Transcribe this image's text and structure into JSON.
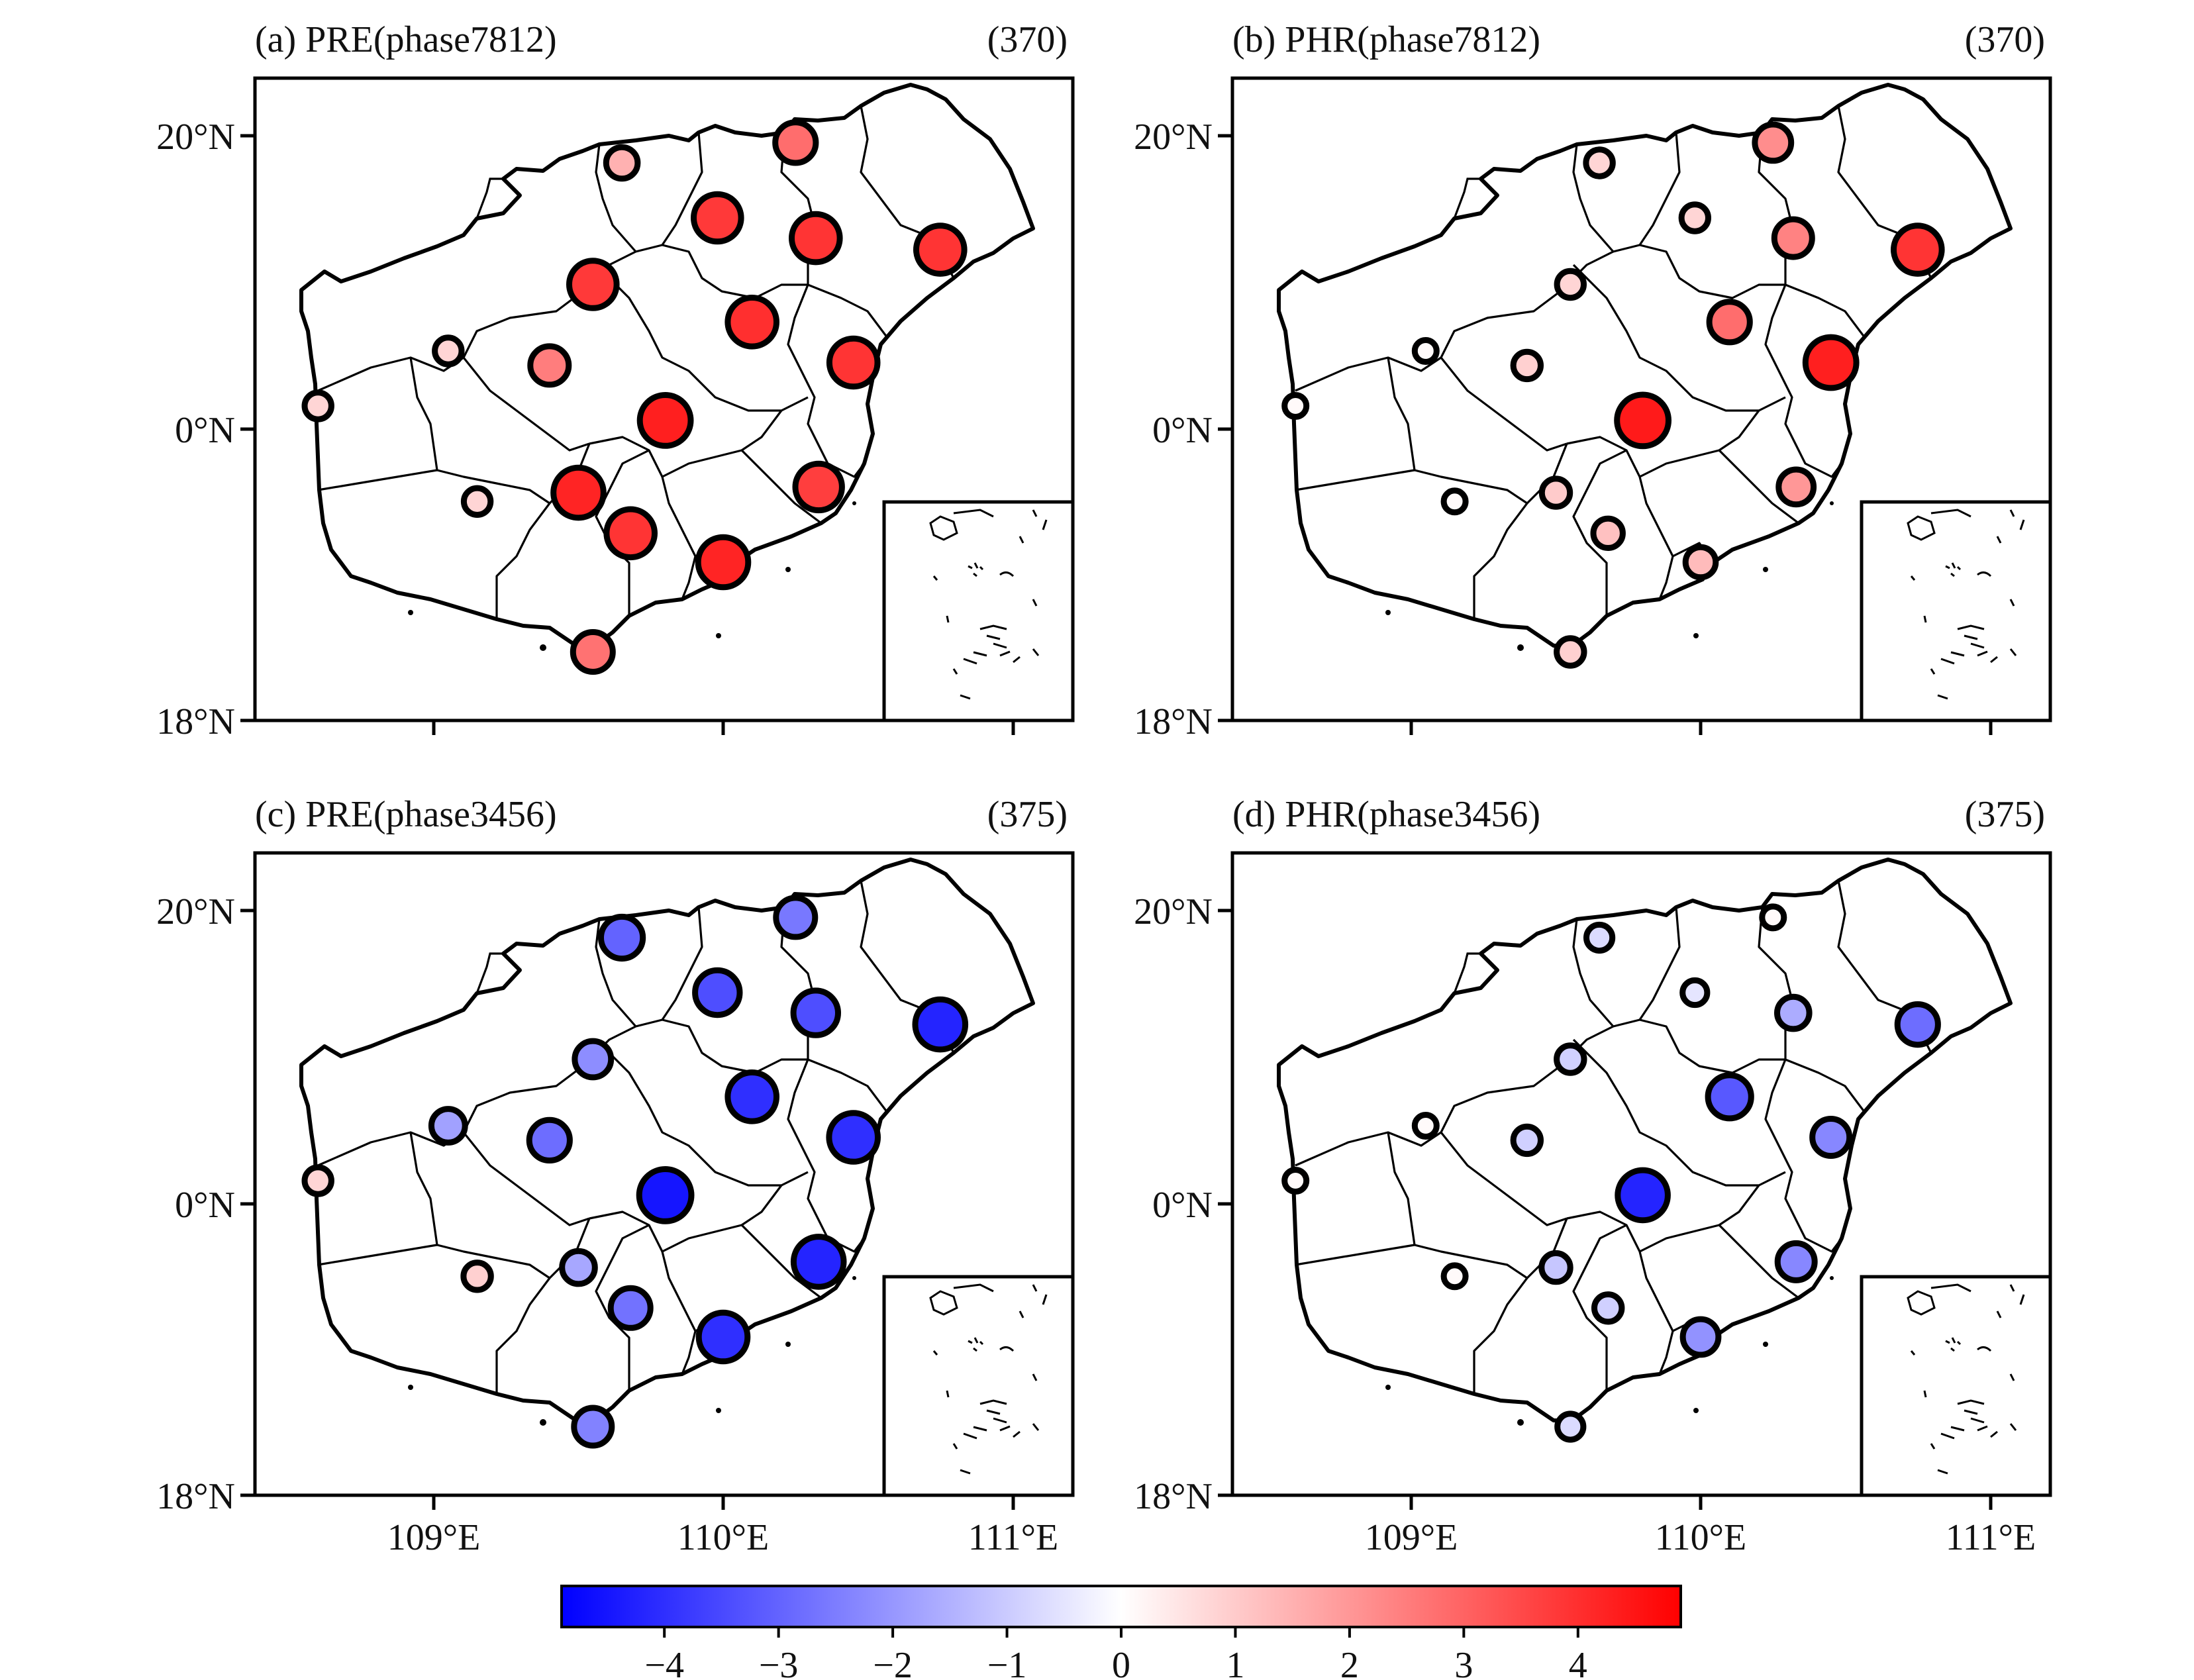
{
  "axes": {
    "lat_labels": [
      "20°N",
      "0°N",
      "18°N"
    ],
    "lon_labels": [
      "109°E",
      "110°E",
      "111°E"
    ]
  },
  "colorbar": {
    "ticks": [
      -4,
      -3,
      -2,
      -1,
      0,
      1,
      2,
      3,
      4
    ],
    "tick_labels": [
      "−4",
      "−3",
      "−2",
      "−1",
      "0",
      "1",
      "2",
      "3",
      "4"
    ],
    "vmin": -4.9,
    "vmax": 4.9,
    "colors": {
      "low": "#0000ff",
      "mid": "#ffffff",
      "high": "#ff0000"
    }
  },
  "panels": [
    {
      "title": "(a) PRE(phase7812)",
      "count": "(370)",
      "stations": [
        {
          "lon": 108.6,
          "lat": 19.08,
          "v": 0.8
        },
        {
          "lon": 109.05,
          "lat": 19.27,
          "v": 0.8
        },
        {
          "lon": 109.4,
          "lat": 19.22,
          "v": 2.5
        },
        {
          "lon": 109.55,
          "lat": 19.5,
          "v": 3.8
        },
        {
          "lon": 109.65,
          "lat": 19.92,
          "v": 1.5
        },
        {
          "lon": 109.98,
          "lat": 19.73,
          "v": 3.8
        },
        {
          "lon": 110.25,
          "lat": 19.99,
          "v": 2.8
        },
        {
          "lon": 110.32,
          "lat": 19.66,
          "v": 3.9
        },
        {
          "lon": 110.75,
          "lat": 19.62,
          "v": 3.9
        },
        {
          "lon": 110.1,
          "lat": 19.37,
          "v": 4.0
        },
        {
          "lon": 110.45,
          "lat": 19.23,
          "v": 3.9
        },
        {
          "lon": 109.8,
          "lat": 19.03,
          "v": 4.3
        },
        {
          "lon": 109.15,
          "lat": 18.75,
          "v": 0.8
        },
        {
          "lon": 109.5,
          "lat": 18.78,
          "v": 4.2
        },
        {
          "lon": 109.68,
          "lat": 18.64,
          "v": 3.9
        },
        {
          "lon": 110.0,
          "lat": 18.54,
          "v": 4.2
        },
        {
          "lon": 110.33,
          "lat": 18.8,
          "v": 3.7
        },
        {
          "lon": 109.55,
          "lat": 18.23,
          "v": 2.7
        }
      ]
    },
    {
      "title": "(b) PHR(phase7812)",
      "count": "(370)",
      "stations": [
        {
          "lon": 108.6,
          "lat": 19.08,
          "v": 0.1
        },
        {
          "lon": 109.05,
          "lat": 19.27,
          "v": 0.1
        },
        {
          "lon": 109.4,
          "lat": 19.22,
          "v": 0.9
        },
        {
          "lon": 109.55,
          "lat": 19.5,
          "v": 0.8
        },
        {
          "lon": 109.65,
          "lat": 19.92,
          "v": 0.8
        },
        {
          "lon": 109.98,
          "lat": 19.73,
          "v": 0.8
        },
        {
          "lon": 110.25,
          "lat": 19.99,
          "v": 2.2
        },
        {
          "lon": 110.32,
          "lat": 19.66,
          "v": 2.4
        },
        {
          "lon": 110.75,
          "lat": 19.62,
          "v": 3.9
        },
        {
          "lon": 110.1,
          "lat": 19.37,
          "v": 2.8
        },
        {
          "lon": 110.45,
          "lat": 19.23,
          "v": 4.3
        },
        {
          "lon": 109.8,
          "lat": 19.03,
          "v": 4.4
        },
        {
          "lon": 109.15,
          "lat": 18.75,
          "v": 0.1
        },
        {
          "lon": 109.5,
          "lat": 18.78,
          "v": 1.0
        },
        {
          "lon": 109.68,
          "lat": 18.64,
          "v": 1.2
        },
        {
          "lon": 110.0,
          "lat": 18.54,
          "v": 1.3
        },
        {
          "lon": 110.33,
          "lat": 18.8,
          "v": 2.0
        },
        {
          "lon": 109.55,
          "lat": 18.23,
          "v": 0.9
        }
      ]
    },
    {
      "title": "(c) PRE(phase3456)",
      "count": "(375)",
      "stations": [
        {
          "lon": 108.6,
          "lat": 19.08,
          "v": 0.8
        },
        {
          "lon": 109.05,
          "lat": 19.27,
          "v": -1.8
        },
        {
          "lon": 109.4,
          "lat": 19.22,
          "v": -2.8
        },
        {
          "lon": 109.55,
          "lat": 19.5,
          "v": -2.2
        },
        {
          "lon": 109.65,
          "lat": 19.92,
          "v": -3.0
        },
        {
          "lon": 109.98,
          "lat": 19.73,
          "v": -3.4
        },
        {
          "lon": 110.25,
          "lat": 19.99,
          "v": -2.6
        },
        {
          "lon": 110.32,
          "lat": 19.66,
          "v": -3.4
        },
        {
          "lon": 110.75,
          "lat": 19.62,
          "v": -4.2
        },
        {
          "lon": 110.1,
          "lat": 19.37,
          "v": -4.0
        },
        {
          "lon": 110.45,
          "lat": 19.23,
          "v": -4.0
        },
        {
          "lon": 109.8,
          "lat": 19.03,
          "v": -4.5
        },
        {
          "lon": 109.15,
          "lat": 18.75,
          "v": 0.9
        },
        {
          "lon": 109.5,
          "lat": 18.78,
          "v": -1.7
        },
        {
          "lon": 109.68,
          "lat": 18.64,
          "v": -2.7
        },
        {
          "lon": 110.0,
          "lat": 18.54,
          "v": -4.0
        },
        {
          "lon": 110.33,
          "lat": 18.8,
          "v": -4.2
        },
        {
          "lon": 109.55,
          "lat": 18.23,
          "v": -2.4
        }
      ]
    },
    {
      "title": "(d) PHR(phase3456)",
      "count": "(375)",
      "stations": [
        {
          "lon": 108.6,
          "lat": 19.08,
          "v": 0.1
        },
        {
          "lon": 109.05,
          "lat": 19.27,
          "v": 0.1
        },
        {
          "lon": 109.4,
          "lat": 19.22,
          "v": -0.9
        },
        {
          "lon": 109.55,
          "lat": 19.5,
          "v": -0.9
        },
        {
          "lon": 109.65,
          "lat": 19.92,
          "v": -0.7
        },
        {
          "lon": 109.98,
          "lat": 19.73,
          "v": -0.5
        },
        {
          "lon": 110.25,
          "lat": 19.99,
          "v": 0.1
        },
        {
          "lon": 110.32,
          "lat": 19.66,
          "v": -1.6
        },
        {
          "lon": 110.75,
          "lat": 19.62,
          "v": -2.8
        },
        {
          "lon": 110.1,
          "lat": 19.37,
          "v": -3.2
        },
        {
          "lon": 110.45,
          "lat": 19.23,
          "v": -2.3
        },
        {
          "lon": 109.8,
          "lat": 19.03,
          "v": -4.2
        },
        {
          "lon": 109.15,
          "lat": 18.75,
          "v": 0.1
        },
        {
          "lon": 109.5,
          "lat": 18.78,
          "v": -1.1
        },
        {
          "lon": 109.68,
          "lat": 18.64,
          "v": -0.9
        },
        {
          "lon": 110.0,
          "lat": 18.54,
          "v": -2.1
        },
        {
          "lon": 110.33,
          "lat": 18.8,
          "v": -2.3
        },
        {
          "lon": 109.55,
          "lat": 18.23,
          "v": -0.7
        }
      ]
    }
  ]
}
